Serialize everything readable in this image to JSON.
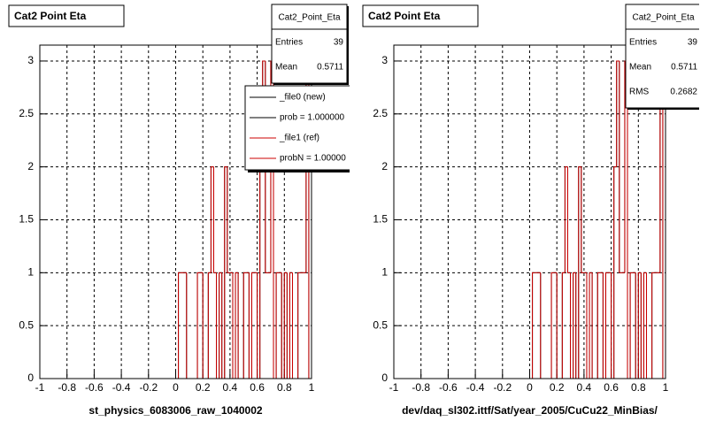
{
  "chart_data": [
    {
      "type": "histogram",
      "title": "Cat2 Point Eta",
      "xlabel": "st_physics_6083006_raw_1040002",
      "xlim": [
        -1,
        1
      ],
      "ylim": [
        0,
        3.15
      ],
      "xticks": [
        -1,
        -0.8,
        -0.6,
        -0.4,
        -0.2,
        0,
        0.2,
        0.4,
        0.6,
        0.8,
        1
      ],
      "yticks": [
        0,
        0.5,
        1,
        1.5,
        2,
        2.5,
        3
      ],
      "grid": true,
      "bins": [
        -1,
        -0.98,
        -0.96,
        -0.94,
        -0.92,
        -0.9,
        -0.88,
        -0.86,
        -0.84,
        -0.82,
        -0.8,
        -0.78,
        -0.76,
        -0.74,
        -0.72,
        -0.7,
        -0.68,
        -0.66,
        -0.64,
        -0.62,
        -0.6,
        -0.58,
        -0.56,
        -0.54,
        -0.52,
        -0.5,
        -0.48,
        -0.46,
        -0.44,
        -0.42,
        -0.4,
        -0.38,
        -0.36,
        -0.34,
        -0.32,
        -0.3,
        -0.28,
        -0.26,
        -0.24,
        -0.22,
        -0.2,
        -0.18,
        -0.16,
        -0.14,
        -0.12,
        -0.1,
        -0.08,
        -0.06,
        -0.04,
        -0.02,
        0,
        0.02,
        0.04,
        0.06,
        0.08,
        0.1,
        0.12,
        0.14,
        0.16,
        0.18,
        0.2,
        0.22,
        0.24,
        0.26,
        0.28,
        0.3,
        0.32,
        0.34,
        0.36,
        0.38,
        0.4,
        0.42,
        0.44,
        0.46,
        0.48,
        0.5,
        0.52,
        0.54,
        0.56,
        0.58,
        0.6,
        0.62,
        0.64,
        0.66,
        0.68,
        0.7,
        0.72,
        0.74,
        0.76,
        0.78,
        0.8,
        0.82,
        0.84,
        0.86,
        0.88,
        0.9,
        0.92,
        0.94,
        0.96,
        0.98,
        1
      ],
      "series": [
        {
          "name": "_file0 (new)",
          "note": "prob = 1.000000",
          "color": "#000000",
          "values": [
            0,
            0,
            0,
            0,
            0,
            0,
            0,
            0,
            0,
            0,
            0,
            0,
            0,
            0,
            0,
            0,
            0,
            0,
            0,
            0,
            0,
            0,
            0,
            0,
            0,
            0,
            0,
            0,
            0,
            0,
            0,
            0,
            0,
            0,
            0,
            0,
            0,
            0,
            0,
            0,
            0,
            0,
            0,
            0,
            0,
            0,
            0,
            0,
            0,
            0,
            0,
            1,
            1,
            1,
            0,
            0,
            0,
            0,
            1,
            1,
            0,
            0,
            1,
            2,
            1,
            0,
            1,
            0,
            2,
            1,
            1,
            0,
            1,
            0,
            0,
            1,
            1,
            0,
            1,
            1,
            0,
            2,
            3,
            1,
            1,
            3,
            0,
            1,
            1,
            0,
            1,
            0,
            1,
            0,
            0,
            1,
            1,
            1,
            3,
            0
          ]
        },
        {
          "name": "_file1 (ref)",
          "note": "probN = 1.00000",
          "color": "#cc0000",
          "values": [
            0,
            0,
            0,
            0,
            0,
            0,
            0,
            0,
            0,
            0,
            0,
            0,
            0,
            0,
            0,
            0,
            0,
            0,
            0,
            0,
            0,
            0,
            0,
            0,
            0,
            0,
            0,
            0,
            0,
            0,
            0,
            0,
            0,
            0,
            0,
            0,
            0,
            0,
            0,
            0,
            0,
            0,
            0,
            0,
            0,
            0,
            0,
            0,
            0,
            0,
            0,
            1,
            1,
            1,
            0,
            0,
            0,
            0,
            1,
            1,
            0,
            0,
            1,
            2,
            1,
            0,
            1,
            0,
            2,
            1,
            1,
            0,
            1,
            0,
            0,
            1,
            1,
            0,
            1,
            1,
            0,
            2,
            3,
            1,
            1,
            3,
            0,
            1,
            1,
            0,
            1,
            0,
            1,
            0,
            0,
            1,
            1,
            1,
            3,
            0
          ]
        }
      ],
      "legend": true,
      "stats": {
        "name": "Cat2_Point_Eta",
        "rows": [
          [
            "Entries",
            39
          ],
          [
            "Mean",
            0.5711
          ]
        ]
      }
    },
    {
      "type": "histogram",
      "title": "Cat2 Point Eta",
      "xlabel": "dev/daq_sl302.ittf/Sat/year_2005/CuCu22_MinBias/",
      "xlim": [
        -1,
        1
      ],
      "ylim": [
        0,
        3.15
      ],
      "xticks": [
        -1,
        -0.8,
        -0.6,
        -0.4,
        -0.2,
        0,
        0.2,
        0.4,
        0.6,
        0.8,
        1
      ],
      "yticks": [
        0,
        0.5,
        1,
        1.5,
        2,
        2.5,
        3
      ],
      "grid": true,
      "bins": [
        -1,
        -0.98,
        -0.96,
        -0.94,
        -0.92,
        -0.9,
        -0.88,
        -0.86,
        -0.84,
        -0.82,
        -0.8,
        -0.78,
        -0.76,
        -0.74,
        -0.72,
        -0.7,
        -0.68,
        -0.66,
        -0.64,
        -0.62,
        -0.6,
        -0.58,
        -0.56,
        -0.54,
        -0.52,
        -0.5,
        -0.48,
        -0.46,
        -0.44,
        -0.42,
        -0.4,
        -0.38,
        -0.36,
        -0.34,
        -0.32,
        -0.3,
        -0.28,
        -0.26,
        -0.24,
        -0.22,
        -0.2,
        -0.18,
        -0.16,
        -0.14,
        -0.12,
        -0.1,
        -0.08,
        -0.06,
        -0.04,
        -0.02,
        0,
        0.02,
        0.04,
        0.06,
        0.08,
        0.1,
        0.12,
        0.14,
        0.16,
        0.18,
        0.2,
        0.22,
        0.24,
        0.26,
        0.28,
        0.3,
        0.32,
        0.34,
        0.36,
        0.38,
        0.4,
        0.42,
        0.44,
        0.46,
        0.48,
        0.5,
        0.52,
        0.54,
        0.56,
        0.58,
        0.6,
        0.62,
        0.64,
        0.66,
        0.68,
        0.7,
        0.72,
        0.74,
        0.76,
        0.78,
        0.8,
        0.82,
        0.84,
        0.86,
        0.88,
        0.9,
        0.92,
        0.94,
        0.96,
        0.98,
        1
      ],
      "series": [
        {
          "color": "#000000",
          "values": [
            0,
            0,
            0,
            0,
            0,
            0,
            0,
            0,
            0,
            0,
            0,
            0,
            0,
            0,
            0,
            0,
            0,
            0,
            0,
            0,
            0,
            0,
            0,
            0,
            0,
            0,
            0,
            0,
            0,
            0,
            0,
            0,
            0,
            0,
            0,
            0,
            0,
            0,
            0,
            0,
            0,
            0,
            0,
            0,
            0,
            0,
            0,
            0,
            0,
            0,
            0,
            1,
            1,
            1,
            0,
            0,
            0,
            0,
            1,
            1,
            0,
            0,
            1,
            2,
            1,
            0,
            1,
            0,
            2,
            1,
            1,
            0,
            1,
            0,
            0,
            1,
            1,
            0,
            1,
            1,
            0,
            2,
            3,
            1,
            1,
            3,
            0,
            1,
            1,
            0,
            1,
            0,
            1,
            0,
            0,
            1,
            1,
            1,
            3,
            0
          ]
        },
        {
          "color": "#cc0000",
          "values": [
            0,
            0,
            0,
            0,
            0,
            0,
            0,
            0,
            0,
            0,
            0,
            0,
            0,
            0,
            0,
            0,
            0,
            0,
            0,
            0,
            0,
            0,
            0,
            0,
            0,
            0,
            0,
            0,
            0,
            0,
            0,
            0,
            0,
            0,
            0,
            0,
            0,
            0,
            0,
            0,
            0,
            0,
            0,
            0,
            0,
            0,
            0,
            0,
            0,
            0,
            0,
            1,
            1,
            1,
            0,
            0,
            0,
            0,
            1,
            1,
            0,
            0,
            1,
            2,
            1,
            0,
            1,
            0,
            2,
            1,
            1,
            0,
            1,
            0,
            0,
            1,
            1,
            0,
            1,
            1,
            0,
            2,
            3,
            1,
            1,
            3,
            0,
            1,
            1,
            0,
            1,
            0,
            1,
            0,
            0,
            1,
            1,
            1,
            3,
            0
          ]
        }
      ],
      "stats": {
        "name": "Cat2_Point_Eta",
        "rows": [
          [
            "Entries",
            39
          ],
          [
            "Mean",
            0.5711
          ],
          [
            "RMS",
            0.2682
          ]
        ]
      }
    }
  ]
}
